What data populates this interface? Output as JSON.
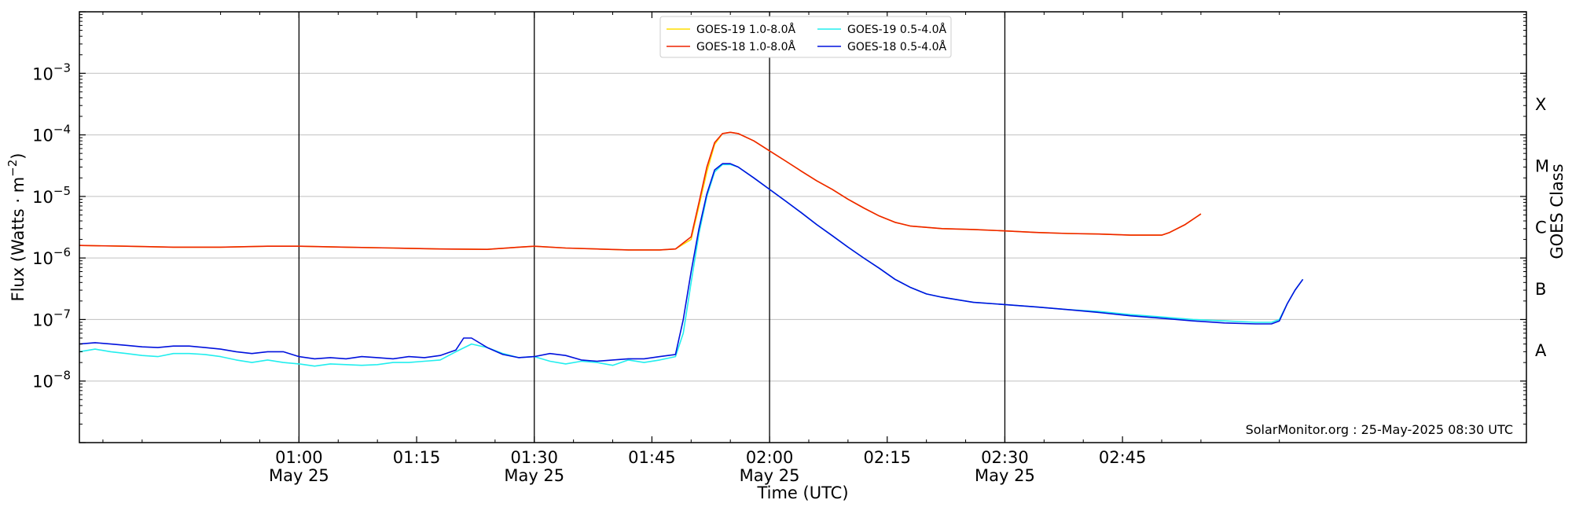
{
  "chart_data": {
    "type": "line",
    "xlabel": "Time (UTC)",
    "ylabel_text": "Flux (Watts · m",
    "ylabel_sup": "−2",
    "ylabel_close": ")",
    "y2label": "GOES Class",
    "watermark": "SolarMonitor.org : 25-May-2025 08:30 UTC",
    "yscale": "log",
    "ylim": [
      1e-09,
      0.01
    ],
    "xlim": [
      "00:32",
      "02:56"
    ],
    "x_unit": "minutes after 00:32 UTC",
    "x_ticks": [
      {
        "t": 28,
        "time": "01:00",
        "date": "May 25"
      },
      {
        "t": 43,
        "time": "01:15",
        "date": ""
      },
      {
        "t": 58,
        "time": "01:30",
        "date": "May 25"
      },
      {
        "t": 73,
        "time": "01:45",
        "date": ""
      },
      {
        "t": 88,
        "time": "02:00",
        "date": "May 25"
      },
      {
        "t": 103,
        "time": "02:15",
        "date": ""
      },
      {
        "t": 118,
        "time": "02:30",
        "date": "May 25"
      },
      {
        "t": 133,
        "time": "02:45",
        "date": ""
      }
    ],
    "major_vlines": [
      28,
      58,
      88,
      118
    ],
    "y_ticks": [
      {
        "exp": -8,
        "base": "10",
        "label": "−8"
      },
      {
        "exp": -7,
        "base": "10",
        "label": "−7"
      },
      {
        "exp": -6,
        "base": "10",
        "label": "−6"
      },
      {
        "exp": -5,
        "base": "10",
        "label": "−5"
      },
      {
        "exp": -4,
        "base": "10",
        "label": "−4"
      },
      {
        "exp": -3,
        "base": "10",
        "label": "−3"
      }
    ],
    "goes_classes": [
      {
        "label": "A",
        "flux": 3.2e-08
      },
      {
        "label": "B",
        "flux": 3.2e-07
      },
      {
        "label": "C",
        "flux": 3.2e-06
      },
      {
        "label": "M",
        "flux": 3.2e-05
      },
      {
        "label": "X",
        "flux": 0.00032
      }
    ],
    "series": [
      {
        "name": "GOES-19 1.0-8.0Å",
        "color": "#ffdd00",
        "points": [
          [
            0,
            1.6e-06
          ],
          [
            6,
            1.55e-06
          ],
          [
            12,
            1.5e-06
          ],
          [
            18,
            1.5e-06
          ],
          [
            24,
            1.55e-06
          ],
          [
            28,
            1.55e-06
          ],
          [
            34,
            1.5e-06
          ],
          [
            40,
            1.45e-06
          ],
          [
            46,
            1.4e-06
          ],
          [
            52,
            1.38e-06
          ],
          [
            56,
            1.5e-06
          ],
          [
            58,
            1.55e-06
          ],
          [
            62,
            1.45e-06
          ],
          [
            66,
            1.4e-06
          ],
          [
            70,
            1.35e-06
          ],
          [
            74,
            1.35e-06
          ],
          [
            76,
            1.4e-06
          ],
          [
            78,
            2e-06
          ],
          [
            79,
            7e-06
          ],
          [
            80,
            2.5e-05
          ],
          [
            81,
            7e-05
          ],
          [
            82,
            0.000105
          ],
          [
            83,
            0.00011
          ],
          [
            84,
            0.000105
          ],
          [
            86,
            8e-05
          ],
          [
            88,
            5.5e-05
          ],
          [
            90,
            3.8e-05
          ],
          [
            92,
            2.6e-05
          ],
          [
            94,
            1.8e-05
          ],
          [
            96,
            1.3e-05
          ],
          [
            98,
            9e-06
          ],
          [
            100,
            6.5e-06
          ],
          [
            102,
            4.8e-06
          ],
          [
            104,
            3.8e-06
          ],
          [
            106,
            3.3e-06
          ],
          [
            110,
            3e-06
          ],
          [
            114,
            2.9e-06
          ],
          [
            118,
            2.75e-06
          ],
          [
            122,
            2.6e-06
          ],
          [
            126,
            2.5e-06
          ],
          [
            130,
            2.45e-06
          ],
          [
            134,
            2.35e-06
          ],
          [
            138,
            2.35e-06
          ],
          [
            139,
            2.6e-06
          ],
          [
            141,
            3.5e-06
          ],
          [
            143,
            5.2e-06
          ]
        ]
      },
      {
        "name": "GOES-18 1.0-8.0Å",
        "color": "#ee2200",
        "points": [
          [
            0,
            1.6e-06
          ],
          [
            6,
            1.55e-06
          ],
          [
            12,
            1.5e-06
          ],
          [
            18,
            1.5e-06
          ],
          [
            24,
            1.55e-06
          ],
          [
            28,
            1.55e-06
          ],
          [
            34,
            1.5e-06
          ],
          [
            40,
            1.45e-06
          ],
          [
            46,
            1.4e-06
          ],
          [
            52,
            1.38e-06
          ],
          [
            56,
            1.5e-06
          ],
          [
            58,
            1.55e-06
          ],
          [
            62,
            1.45e-06
          ],
          [
            66,
            1.4e-06
          ],
          [
            70,
            1.35e-06
          ],
          [
            74,
            1.35e-06
          ],
          [
            76,
            1.4e-06
          ],
          [
            78,
            2.2e-06
          ],
          [
            79,
            8e-06
          ],
          [
            80,
            3e-05
          ],
          [
            81,
            7.5e-05
          ],
          [
            82,
            0.000105
          ],
          [
            83,
            0.00011
          ],
          [
            84,
            0.000105
          ],
          [
            86,
            8e-05
          ],
          [
            88,
            5.5e-05
          ],
          [
            90,
            3.8e-05
          ],
          [
            92,
            2.6e-05
          ],
          [
            94,
            1.8e-05
          ],
          [
            96,
            1.3e-05
          ],
          [
            98,
            9e-06
          ],
          [
            100,
            6.5e-06
          ],
          [
            102,
            4.8e-06
          ],
          [
            104,
            3.8e-06
          ],
          [
            106,
            3.3e-06
          ],
          [
            110,
            3e-06
          ],
          [
            114,
            2.9e-06
          ],
          [
            118,
            2.75e-06
          ],
          [
            122,
            2.6e-06
          ],
          [
            126,
            2.5e-06
          ],
          [
            130,
            2.45e-06
          ],
          [
            134,
            2.35e-06
          ],
          [
            138,
            2.35e-06
          ],
          [
            139,
            2.6e-06
          ],
          [
            141,
            3.5e-06
          ],
          [
            143,
            5.2e-06
          ]
        ]
      },
      {
        "name": "GOES-19 0.5-4.0Å",
        "color": "#22eeee",
        "points": [
          [
            0,
            3e-08
          ],
          [
            2,
            3.3e-08
          ],
          [
            4,
            3e-08
          ],
          [
            6,
            2.8e-08
          ],
          [
            8,
            2.6e-08
          ],
          [
            10,
            2.5e-08
          ],
          [
            12,
            2.8e-08
          ],
          [
            14,
            2.8e-08
          ],
          [
            16,
            2.7e-08
          ],
          [
            18,
            2.5e-08
          ],
          [
            20,
            2.2e-08
          ],
          [
            22,
            2e-08
          ],
          [
            24,
            2.2e-08
          ],
          [
            26,
            2e-08
          ],
          [
            28,
            1.9e-08
          ],
          [
            30,
            1.75e-08
          ],
          [
            32,
            1.9e-08
          ],
          [
            34,
            1.85e-08
          ],
          [
            36,
            1.8e-08
          ],
          [
            38,
            1.85e-08
          ],
          [
            40,
            2e-08
          ],
          [
            42,
            2e-08
          ],
          [
            44,
            2.1e-08
          ],
          [
            46,
            2.2e-08
          ],
          [
            48,
            3e-08
          ],
          [
            50,
            4e-08
          ],
          [
            52,
            3.5e-08
          ],
          [
            54,
            2.8e-08
          ],
          [
            56,
            2.4e-08
          ],
          [
            58,
            2.5e-08
          ],
          [
            60,
            2.1e-08
          ],
          [
            62,
            1.9e-08
          ],
          [
            64,
            2.1e-08
          ],
          [
            66,
            2e-08
          ],
          [
            68,
            1.8e-08
          ],
          [
            70,
            2.2e-08
          ],
          [
            72,
            2e-08
          ],
          [
            74,
            2.2e-08
          ],
          [
            76,
            2.5e-08
          ],
          [
            77,
            6e-08
          ],
          [
            78,
            4e-07
          ],
          [
            79,
            2.5e-06
          ],
          [
            80,
            1e-05
          ],
          [
            81,
            2.5e-05
          ],
          [
            82,
            3.3e-05
          ],
          [
            83,
            3.3e-05
          ],
          [
            84,
            3e-05
          ],
          [
            86,
            2e-05
          ],
          [
            88,
            1.3e-05
          ],
          [
            90,
            8.5e-06
          ],
          [
            92,
            5.5e-06
          ],
          [
            94,
            3.5e-06
          ],
          [
            96,
            2.3e-06
          ],
          [
            98,
            1.5e-06
          ],
          [
            100,
            1e-06
          ],
          [
            102,
            6.8e-07
          ],
          [
            104,
            4.5e-07
          ],
          [
            106,
            3.3e-07
          ],
          [
            108,
            2.6e-07
          ],
          [
            110,
            2.3e-07
          ],
          [
            114,
            1.9e-07
          ],
          [
            118,
            1.75e-07
          ],
          [
            122,
            1.6e-07
          ],
          [
            126,
            1.45e-07
          ],
          [
            130,
            1.35e-07
          ],
          [
            134,
            1.2e-07
          ],
          [
            138,
            1.1e-07
          ],
          [
            142,
            1e-07
          ],
          [
            146,
            9.5e-08
          ],
          [
            150,
            9e-08
          ],
          [
            152,
            9e-08
          ],
          [
            153,
            1e-07
          ],
          [
            154,
            1.8e-07
          ],
          [
            155,
            3e-07
          ],
          [
            156,
            4.5e-07
          ]
        ]
      },
      {
        "name": "GOES-18 0.5-4.0Å",
        "color": "#0011dd",
        "points": [
          [
            0,
            4e-08
          ],
          [
            2,
            4.2e-08
          ],
          [
            4,
            4e-08
          ],
          [
            6,
            3.8e-08
          ],
          [
            8,
            3.6e-08
          ],
          [
            10,
            3.5e-08
          ],
          [
            12,
            3.7e-08
          ],
          [
            14,
            3.7e-08
          ],
          [
            16,
            3.5e-08
          ],
          [
            18,
            3.3e-08
          ],
          [
            20,
            3e-08
          ],
          [
            22,
            2.8e-08
          ],
          [
            24,
            3e-08
          ],
          [
            26,
            3e-08
          ],
          [
            28,
            2.5e-08
          ],
          [
            30,
            2.3e-08
          ],
          [
            32,
            2.4e-08
          ],
          [
            34,
            2.3e-08
          ],
          [
            36,
            2.5e-08
          ],
          [
            38,
            2.4e-08
          ],
          [
            40,
            2.3e-08
          ],
          [
            42,
            2.5e-08
          ],
          [
            44,
            2.4e-08
          ],
          [
            46,
            2.6e-08
          ],
          [
            48,
            3.2e-08
          ],
          [
            49,
            5e-08
          ],
          [
            50,
            5e-08
          ],
          [
            52,
            3.5e-08
          ],
          [
            54,
            2.7e-08
          ],
          [
            56,
            2.4e-08
          ],
          [
            58,
            2.5e-08
          ],
          [
            60,
            2.8e-08
          ],
          [
            62,
            2.6e-08
          ],
          [
            64,
            2.2e-08
          ],
          [
            66,
            2.1e-08
          ],
          [
            68,
            2.2e-08
          ],
          [
            70,
            2.3e-08
          ],
          [
            72,
            2.3e-08
          ],
          [
            74,
            2.5e-08
          ],
          [
            76,
            2.7e-08
          ],
          [
            77,
            1e-07
          ],
          [
            78,
            6e-07
          ],
          [
            79,
            3e-06
          ],
          [
            80,
            1.1e-05
          ],
          [
            81,
            2.7e-05
          ],
          [
            82,
            3.4e-05
          ],
          [
            83,
            3.4e-05
          ],
          [
            84,
            3e-05
          ],
          [
            86,
            2e-05
          ],
          [
            88,
            1.3e-05
          ],
          [
            90,
            8.5e-06
          ],
          [
            92,
            5.5e-06
          ],
          [
            94,
            3.5e-06
          ],
          [
            96,
            2.3e-06
          ],
          [
            98,
            1.5e-06
          ],
          [
            100,
            1e-06
          ],
          [
            102,
            6.8e-07
          ],
          [
            104,
            4.5e-07
          ],
          [
            106,
            3.3e-07
          ],
          [
            108,
            2.6e-07
          ],
          [
            110,
            2.3e-07
          ],
          [
            114,
            1.9e-07
          ],
          [
            118,
            1.75e-07
          ],
          [
            122,
            1.6e-07
          ],
          [
            126,
            1.45e-07
          ],
          [
            130,
            1.3e-07
          ],
          [
            134,
            1.15e-07
          ],
          [
            138,
            1.05e-07
          ],
          [
            142,
            9.5e-08
          ],
          [
            146,
            8.8e-08
          ],
          [
            150,
            8.5e-08
          ],
          [
            152,
            8.5e-08
          ],
          [
            153,
            9.5e-08
          ],
          [
            154,
            1.8e-07
          ],
          [
            155,
            3e-07
          ],
          [
            156,
            4.5e-07
          ]
        ]
      }
    ]
  }
}
